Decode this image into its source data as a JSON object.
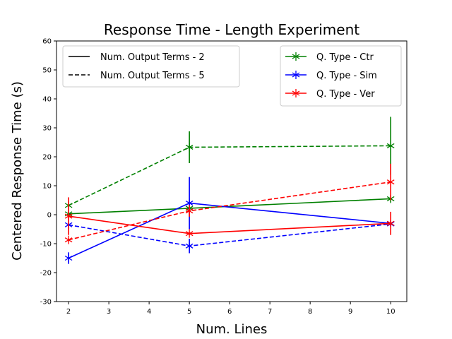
{
  "chart_data": {
    "type": "line",
    "title": "Response Time - Length Experiment",
    "xlabel": "Num. Lines",
    "ylabel": "Centered Response Time (s)",
    "xlim": [
      1.7,
      10.4
    ],
    "ylim": [
      -30,
      60
    ],
    "xticks": [
      2,
      3,
      4,
      5,
      6,
      7,
      8,
      9,
      10
    ],
    "yticks": [
      -30,
      -20,
      -10,
      0,
      10,
      20,
      30,
      40,
      50,
      60
    ],
    "grid": false,
    "style_legend": {
      "placement": "top-left",
      "entries": [
        {
          "label": "Num. Output Terms - 2",
          "dash": "solid"
        },
        {
          "label": "Num. Output Terms - 5",
          "dash": "dashed"
        }
      ]
    },
    "color_legend": {
      "placement": "top-right",
      "entries": [
        {
          "label": "Q. Type - Ctr",
          "color": "#008000"
        },
        {
          "label": "Q. Type - Sim",
          "color": "#0000ff"
        },
        {
          "label": "Q. Type - Ver",
          "color": "#ff0000"
        }
      ]
    },
    "series": [
      {
        "color": "#008000",
        "dash": "solid",
        "points": [
          {
            "x": 2,
            "y": 0.3,
            "err": 0.5
          },
          {
            "x": 5,
            "y": 2.2,
            "err": 0.5
          },
          {
            "x": 10,
            "y": 5.5,
            "err": 1.2
          }
        ]
      },
      {
        "color": "#008000",
        "dash": "dashed",
        "points": [
          {
            "x": 2,
            "y": 3.2,
            "err": 0.5
          },
          {
            "x": 5,
            "y": 23.3,
            "err": 5.5
          },
          {
            "x": 10,
            "y": 23.8,
            "err": 10
          }
        ]
      },
      {
        "color": "#0000ff",
        "dash": "solid",
        "points": [
          {
            "x": 2,
            "y": -15,
            "err": 2
          },
          {
            "x": 5,
            "y": 4,
            "err": 9
          },
          {
            "x": 10,
            "y": -3,
            "err": 1
          }
        ]
      },
      {
        "color": "#0000ff",
        "dash": "dashed",
        "points": [
          {
            "x": 2,
            "y": -3.5,
            "err": 0.5
          },
          {
            "x": 5,
            "y": -10.8,
            "err": 2.5
          },
          {
            "x": 10,
            "y": -3.2,
            "err": 1
          }
        ]
      },
      {
        "color": "#ff0000",
        "dash": "solid",
        "points": [
          {
            "x": 2,
            "y": -0.5,
            "err": 6.5
          },
          {
            "x": 5,
            "y": -6.5,
            "err": 0.5
          },
          {
            "x": 10,
            "y": -3,
            "err": 4
          }
        ]
      },
      {
        "color": "#ff0000",
        "dash": "dashed",
        "points": [
          {
            "x": 2,
            "y": -8.7,
            "err": 0.5
          },
          {
            "x": 5,
            "y": 1.3,
            "err": 2
          },
          {
            "x": 10,
            "y": 11.3,
            "err": 6.3
          }
        ]
      }
    ]
  }
}
